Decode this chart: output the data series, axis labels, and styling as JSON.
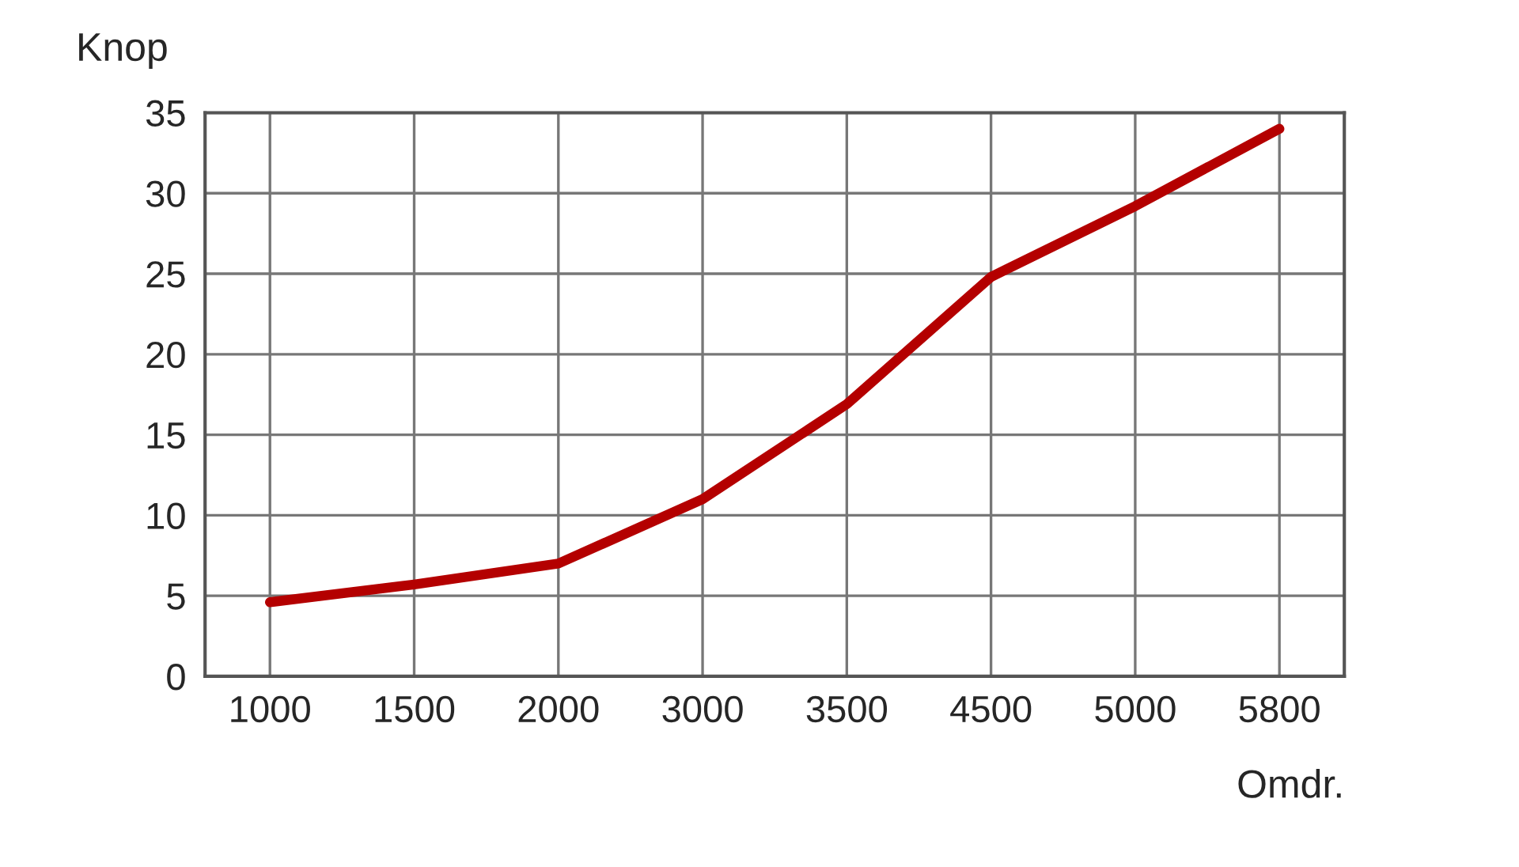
{
  "chart_data": {
    "type": "line",
    "ylabel": "Knop",
    "xlabel": "Omdr.",
    "categories": [
      "1000",
      "1500",
      "2000",
      "3000",
      "3500",
      "4500",
      "5000",
      "5800"
    ],
    "series": [
      {
        "color": "#b40000",
        "values": [
          4.6,
          5.7,
          7.0,
          11.0,
          16.9,
          24.8,
          29.2,
          34.0
        ]
      }
    ],
    "ylim": [
      0,
      35
    ],
    "yticks": [
      0,
      5,
      10,
      15,
      20,
      25,
      30,
      35
    ],
    "grid": true,
    "marker": "none",
    "line_style": "solid"
  }
}
